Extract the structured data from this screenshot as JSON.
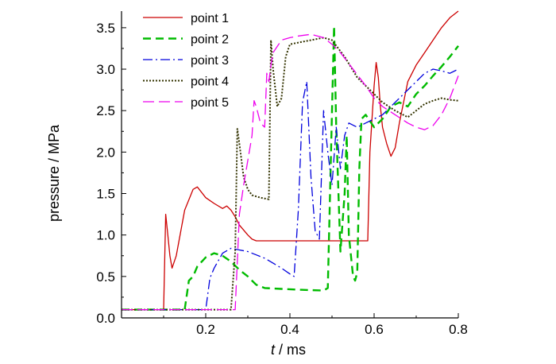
{
  "chart_data": {
    "type": "line",
    "xlabel_italic": "t",
    "xlabel_rest": " / ms",
    "ylabel": "pressure / MPa",
    "xlim": [
      0.0,
      0.8
    ],
    "ylim": [
      0.0,
      3.7
    ],
    "xticks": [
      0.2,
      0.4,
      0.6,
      0.8
    ],
    "xtick_labels": [
      "0.2",
      "0.4",
      "0.6",
      "0.8"
    ],
    "yticks": [
      0.0,
      0.5,
      1.0,
      1.5,
      2.0,
      2.5,
      3.0,
      3.5
    ],
    "ytick_labels": [
      "0.0",
      "0.5",
      "1.0",
      "1.5",
      "2.0",
      "2.5",
      "3.0",
      "3.5"
    ],
    "grid": false,
    "legend_position": "top-left",
    "series": [
      {
        "name": "point 1",
        "color": "#cc0000",
        "dash": "solid",
        "x": [
          0.0,
          0.095,
          0.1,
          0.105,
          0.11,
          0.115,
          0.12,
          0.13,
          0.15,
          0.17,
          0.18,
          0.2,
          0.22,
          0.24,
          0.25,
          0.26,
          0.27,
          0.28,
          0.3,
          0.31,
          0.32,
          0.4,
          0.5,
          0.585,
          0.59,
          0.6,
          0.605,
          0.61,
          0.615,
          0.62,
          0.63,
          0.64,
          0.65,
          0.66,
          0.67,
          0.68,
          0.7,
          0.72,
          0.74,
          0.76,
          0.78,
          0.8
        ],
        "y": [
          0.1,
          0.1,
          0.1,
          1.25,
          1.0,
          0.75,
          0.6,
          0.75,
          1.3,
          1.55,
          1.58,
          1.45,
          1.38,
          1.32,
          1.35,
          1.3,
          1.22,
          1.12,
          1.0,
          0.95,
          0.93,
          0.93,
          0.93,
          0.93,
          2.0,
          2.8,
          3.08,
          2.9,
          2.55,
          2.3,
          2.1,
          1.95,
          2.05,
          2.35,
          2.6,
          2.85,
          3.05,
          3.2,
          3.35,
          3.5,
          3.62,
          3.7
        ]
      },
      {
        "name": "point 2",
        "color": "#00bb00",
        "dash": "10,6",
        "x": [
          0.0,
          0.14,
          0.15,
          0.16,
          0.17,
          0.18,
          0.2,
          0.22,
          0.24,
          0.26,
          0.28,
          0.3,
          0.31,
          0.32,
          0.34,
          0.38,
          0.42,
          0.48,
          0.49,
          0.5,
          0.505,
          0.51,
          0.52,
          0.53,
          0.535,
          0.54,
          0.55,
          0.555,
          0.56,
          0.565,
          0.57,
          0.58,
          0.6,
          0.62,
          0.64,
          0.66,
          0.68,
          0.7,
          0.72,
          0.74,
          0.76,
          0.78,
          0.8
        ],
        "y": [
          0.1,
          0.1,
          0.1,
          0.45,
          0.5,
          0.62,
          0.73,
          0.78,
          0.75,
          0.68,
          0.58,
          0.5,
          0.45,
          0.4,
          0.36,
          0.35,
          0.34,
          0.33,
          0.36,
          2.5,
          3.52,
          2.3,
          0.8,
          1.5,
          2.2,
          1.0,
          0.5,
          0.45,
          0.55,
          1.8,
          2.4,
          2.45,
          2.3,
          2.4,
          2.55,
          2.6,
          2.55,
          2.7,
          2.8,
          2.92,
          3.03,
          3.15,
          3.28
        ]
      },
      {
        "name": "point 3",
        "color": "#0000dd",
        "dash": "12,4,2,4",
        "x": [
          0.0,
          0.19,
          0.2,
          0.21,
          0.22,
          0.24,
          0.26,
          0.28,
          0.3,
          0.32,
          0.34,
          0.36,
          0.38,
          0.4,
          0.41,
          0.42,
          0.43,
          0.44,
          0.45,
          0.46,
          0.47,
          0.48,
          0.49,
          0.5,
          0.51,
          0.52,
          0.53,
          0.54,
          0.56,
          0.58,
          0.6,
          0.62,
          0.64,
          0.66,
          0.68,
          0.7,
          0.72,
          0.74,
          0.76,
          0.78,
          0.8
        ],
        "y": [
          0.1,
          0.1,
          0.1,
          0.48,
          0.6,
          0.78,
          0.84,
          0.82,
          0.8,
          0.76,
          0.72,
          0.66,
          0.6,
          0.53,
          0.5,
          1.3,
          2.6,
          2.85,
          1.7,
          1.05,
          0.95,
          2.5,
          2.0,
          1.6,
          2.3,
          1.8,
          2.2,
          2.35,
          2.3,
          2.35,
          2.4,
          2.45,
          2.55,
          2.65,
          2.75,
          2.85,
          2.95,
          3.0,
          2.98,
          2.95,
          3.0
        ]
      },
      {
        "name": "point 4",
        "color": "#333300",
        "dash": "2,2",
        "x": [
          0.0,
          0.24,
          0.25,
          0.26,
          0.27,
          0.275,
          0.28,
          0.29,
          0.3,
          0.31,
          0.33,
          0.35,
          0.355,
          0.36,
          0.37,
          0.38,
          0.39,
          0.4,
          0.42,
          0.45,
          0.48,
          0.5,
          0.53,
          0.56,
          0.6,
          0.62,
          0.65,
          0.68,
          0.7,
          0.72,
          0.74,
          0.76,
          0.78,
          0.8
        ],
        "y": [
          0.1,
          0.1,
          0.1,
          0.1,
          0.8,
          2.28,
          2.1,
          1.7,
          1.55,
          1.48,
          1.45,
          1.43,
          3.35,
          3.0,
          2.55,
          2.65,
          3.15,
          3.3,
          3.32,
          3.35,
          3.38,
          3.35,
          3.15,
          2.9,
          2.7,
          2.6,
          2.5,
          2.42,
          2.5,
          2.58,
          2.62,
          2.65,
          2.63,
          2.62
        ]
      },
      {
        "name": "point 5",
        "color": "#ee00ee",
        "dash": "14,6",
        "x": [
          0.0,
          0.26,
          0.27,
          0.28,
          0.29,
          0.3,
          0.31,
          0.315,
          0.32,
          0.33,
          0.34,
          0.345,
          0.35,
          0.355,
          0.36,
          0.38,
          0.4,
          0.42,
          0.45,
          0.48,
          0.5,
          0.52,
          0.55,
          0.58,
          0.6,
          0.62,
          0.65,
          0.68,
          0.7,
          0.72,
          0.74,
          0.76,
          0.78,
          0.8
        ],
        "y": [
          0.1,
          0.1,
          0.1,
          1.25,
          1.6,
          1.9,
          2.2,
          2.62,
          2.55,
          2.35,
          2.3,
          2.95,
          2.85,
          3.05,
          3.2,
          3.35,
          3.38,
          3.4,
          3.42,
          3.38,
          3.3,
          3.2,
          3.0,
          2.8,
          2.65,
          2.55,
          2.45,
          2.35,
          2.3,
          2.27,
          2.32,
          2.45,
          2.65,
          2.92
        ]
      }
    ]
  }
}
